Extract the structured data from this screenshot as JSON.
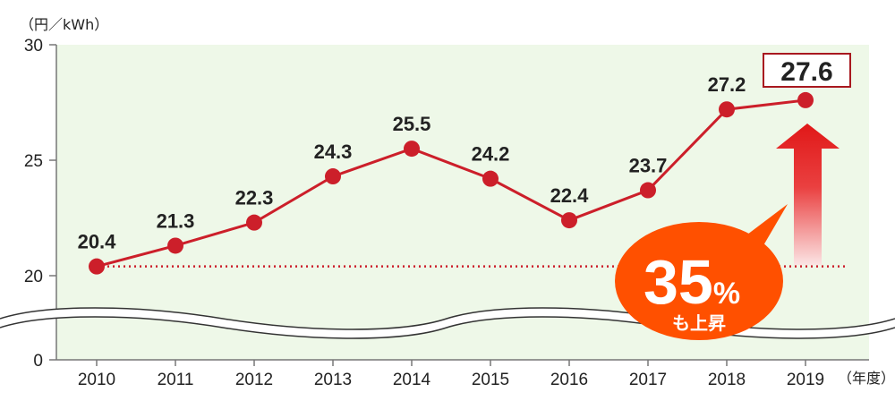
{
  "chart_data": {
    "type": "line",
    "y_unit": "（円／kWh）",
    "x_unit": "（年度）",
    "x": [
      "2010",
      "2011",
      "2012",
      "2013",
      "2014",
      "2015",
      "2016",
      "2017",
      "2018",
      "2019"
    ],
    "series": [
      {
        "values": [
          20.4,
          21.3,
          22.3,
          24.3,
          25.5,
          24.2,
          22.4,
          23.7,
          27.2,
          27.6
        ]
      }
    ],
    "data_labels": [
      "20.4",
      "21.3",
      "22.3",
      "24.3",
      "25.5",
      "24.2",
      "22.4",
      "23.7",
      "27.2",
      "27.6"
    ],
    "y_ticks": [
      "30",
      "25",
      "20",
      "0"
    ],
    "ylim": [
      20,
      30
    ],
    "axis_break": true,
    "reference_line_value": 20.4,
    "highlight_label": "27.6",
    "callout": {
      "number": "35",
      "percent": "%",
      "text": "も上昇"
    },
    "grid": false,
    "colors": {
      "line": "#cc1f2a",
      "marker": "#cc1f2a",
      "plot_bg": "#eef8e8",
      "callout": "#ff5000",
      "arrow": "#e01818",
      "highlight_border": "#a8181f"
    }
  }
}
